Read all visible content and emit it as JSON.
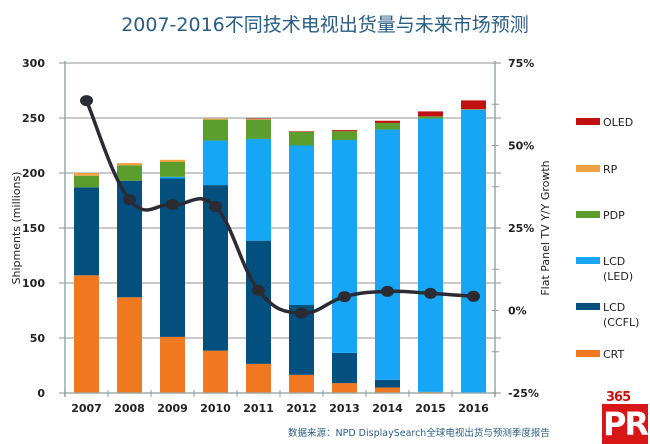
{
  "chart_data": {
    "type": "bar",
    "stacked": true,
    "title": "2007-2016不同技术电视出货量与未来市场预测",
    "xlabel": "",
    "ylabel": "Shipments (millions)",
    "y2label": "Flat Panel TV Y/Y Growth",
    "ylim": [
      0,
      300
    ],
    "y2lim": [
      -25,
      75
    ],
    "yticks": [
      "0",
      "50",
      "100",
      "150",
      "200",
      "250",
      "300"
    ],
    "y2ticks": [
      "-25%",
      "0%",
      "25%",
      "50%",
      "75%"
    ],
    "grid": true,
    "legend_position": "right",
    "categories": [
      "2007",
      "2008",
      "2009",
      "2010",
      "2011",
      "2012",
      "2013",
      "2014",
      "2015",
      "2016"
    ],
    "series": [
      {
        "name": "CRT",
        "legend_label": [
          "CRT"
        ],
        "color": "#f07820",
        "values": [
          107,
          87,
          51,
          38.5,
          26.5,
          16.5,
          9,
          5,
          1,
          0
        ]
      },
      {
        "name": "LCD (CCFL)",
        "legend_label": [
          "LCD",
          "(CCFL)"
        ],
        "color": "#03507f",
        "values": [
          80,
          106,
          144,
          150.5,
          112,
          63.5,
          27.5,
          7,
          0,
          0
        ]
      },
      {
        "name": "LCD (LED)",
        "legend_label": [
          "LCD",
          "(LED)"
        ],
        "color": "#16a6f5",
        "values": [
          0,
          0,
          1.5,
          40.5,
          92.5,
          145,
          193.5,
          227.5,
          248.5,
          257.5
        ]
      },
      {
        "name": "PDP",
        "legend_label": [
          "PDP"
        ],
        "color": "#5b9e2e",
        "values": [
          10.5,
          14,
          13.5,
          19,
          17.5,
          12.5,
          8,
          6,
          2,
          0.5
        ]
      },
      {
        "name": "RP",
        "legend_label": [
          "RP"
        ],
        "color": "#f0a040",
        "values": [
          2.5,
          2,
          2,
          1,
          0.5,
          0,
          0,
          0,
          0,
          0
        ]
      },
      {
        "name": "OLED",
        "legend_label": [
          "OLED"
        ],
        "color": "#c01010",
        "values": [
          0,
          0,
          0,
          0,
          0.5,
          0.5,
          1,
          2,
          4.5,
          8
        ]
      }
    ],
    "line_series": {
      "name": "Flat Panel TV Y/Y Growth",
      "axis": "right",
      "unit": "%",
      "color": "#2b2b33",
      "values": [
        63.6,
        33.6,
        32.1,
        31.5,
        6.1,
        -0.8,
        4.2,
        5.8,
        5.2,
        4.3
      ]
    }
  },
  "source_note": "数据来源：NPD DisplaySearch全球电视出货与预测季度报告",
  "logo": {
    "number": "365",
    "letters": "PR"
  }
}
